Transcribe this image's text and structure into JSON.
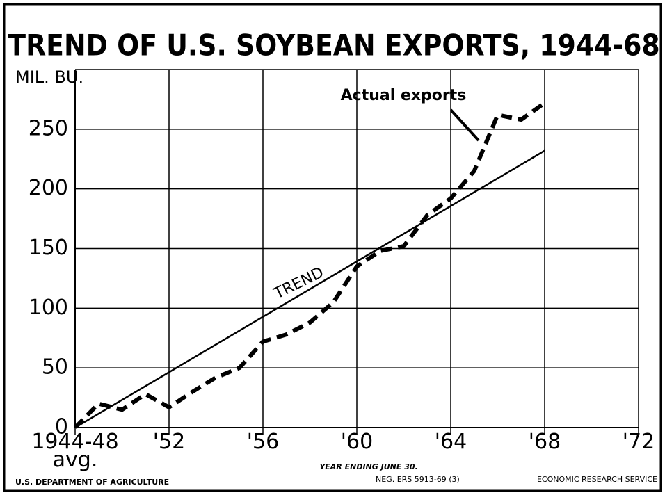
{
  "chart_data": {
    "type": "line",
    "title": "TREND OF U.S. SOYBEAN EXPORTS, 1944-68",
    "y_axis_label": "MIL. BU.",
    "x_axis_label": "YEAR ENDING JUNE 30.",
    "footer_left": "U.S. DEPARTMENT OF AGRICULTURE",
    "footer_middle": "NEG. ERS 5913-69 (3)",
    "footer_right": "ECONOMIC RESEARCH SERVICE",
    "xlim": [
      1948,
      1972
    ],
    "xticks": [
      {
        "value": 1948,
        "label": "1944-48 avg."
      },
      {
        "value": 1952,
        "label": "'52"
      },
      {
        "value": 1956,
        "label": "'56"
      },
      {
        "value": 1960,
        "label": "'60"
      },
      {
        "value": 1964,
        "label": "'64"
      },
      {
        "value": 1968,
        "label": "'68"
      },
      {
        "value": 1972,
        "label": "'72"
      }
    ],
    "ylim": [
      0,
      300
    ],
    "yticks": [
      0,
      50,
      100,
      150,
      200,
      250
    ],
    "grid": true,
    "series": [
      {
        "name": "Actual exports",
        "color": "#000000",
        "style": "dashed",
        "x": [
          1948,
          1949,
          1950,
          1951,
          1952,
          1953,
          1954,
          1955,
          1956,
          1957,
          1958,
          1959,
          1960,
          1961,
          1962,
          1963,
          1964,
          1965,
          1966,
          1967,
          1968
        ],
        "values": [
          0,
          20,
          15,
          28,
          17,
          30,
          42,
          50,
          72,
          78,
          88,
          105,
          135,
          148,
          152,
          178,
          192,
          215,
          262,
          258,
          272
        ]
      },
      {
        "name": "TREND",
        "color": "#000000",
        "style": "solid",
        "x": [
          1948,
          1968
        ],
        "values": [
          0,
          232
        ]
      }
    ]
  }
}
